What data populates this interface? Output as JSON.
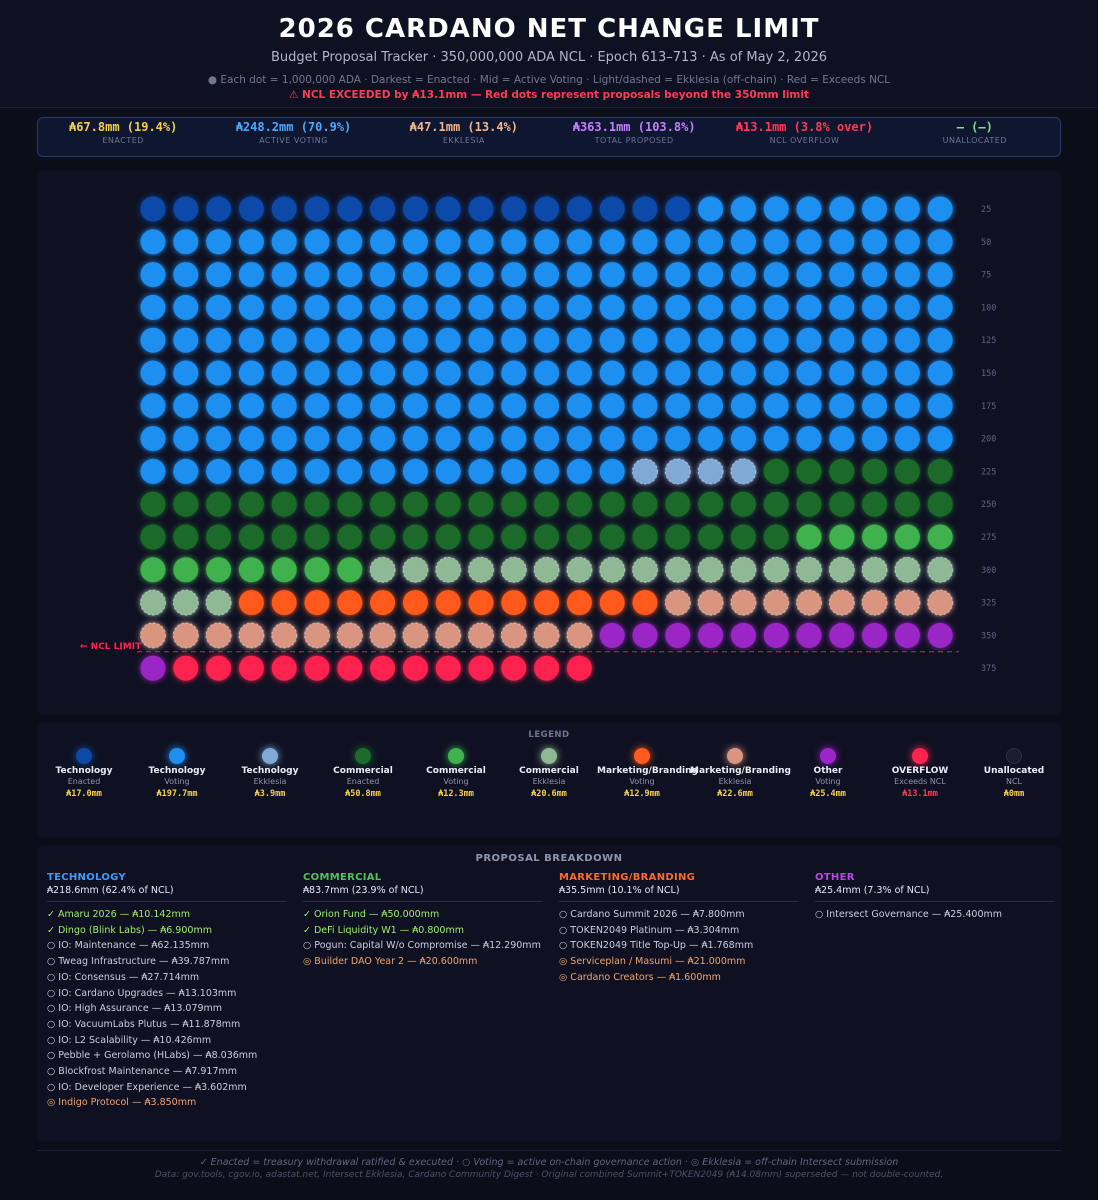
{
  "header": {
    "title": "2026 CARDANO NET CHANGE LIMIT",
    "subtitle": "Budget Proposal Tracker  ·  350,000,000 ADA NCL  ·  Epoch 613–713  ·  As of May 2, 2026",
    "note": "● Each dot = 1,000,000 ADA  ·  Darkest = Enacted  ·  Mid = Active Voting  ·  Light/dashed = Ekklesia (off-chain)  ·  Red = Exceeds NCL",
    "warning": "⚠ NCL EXCEEDED by ₳13.1mm — Red dots represent proposals beyond the 350mm limit"
  },
  "stats": [
    {
      "value": "₳67.8mm  (19.4%)",
      "label": "ENACTED",
      "color": "#f3d04a"
    },
    {
      "value": "₳248.2mm  (70.9%)",
      "label": "ACTIVE VOTING",
      "color": "#4aa8ff"
    },
    {
      "value": "₳47.1mm  (13.4%)",
      "label": "EKKLESIA",
      "color": "#f0b58a"
    },
    {
      "value": "₳363.1mm  (103.8%)",
      "label": "TOTAL PROPOSED",
      "color": "#c77dff"
    },
    {
      "value": "₳13.1mm  (3.8% over)",
      "label": "NCL OVERFLOW",
      "color": "#ff3b55"
    },
    {
      "value": "—  (—)",
      "label": "UNALLOCATED",
      "color": "#7ee08a"
    }
  ],
  "chart_data": {
    "type": "waffle",
    "unit": "1,000,000 ADA per dot",
    "dots_per_row": 25,
    "ncl_limit": 350,
    "ncl_label": "← NCL LIMIT",
    "row_labels": [
      "25",
      "50",
      "75",
      "100",
      "125",
      "150",
      "175",
      "200",
      "225",
      "250",
      "275",
      "300",
      "325",
      "350",
      "375"
    ],
    "segments": [
      {
        "name": "Technology Enacted",
        "dots": 17,
        "color": "#0d4aa8",
        "style": "solid"
      },
      {
        "name": "Technology Voting",
        "dots": 198,
        "color": "#1f8ff0",
        "style": "solid"
      },
      {
        "name": "Technology Ekklesia",
        "dots": 4,
        "color": "#7fa9d6",
        "style": "dashed"
      },
      {
        "name": "Commercial Enacted",
        "dots": 51,
        "color": "#1d6b2a",
        "style": "solid"
      },
      {
        "name": "Commercial Voting",
        "dots": 12,
        "color": "#3fb24e",
        "style": "solid"
      },
      {
        "name": "Commercial Ekklesia",
        "dots": 21,
        "color": "#8fb895",
        "style": "dashed"
      },
      {
        "name": "Marketing/Branding Voting",
        "dots": 13,
        "color": "#ff5a1f",
        "style": "solid"
      },
      {
        "name": "Marketing/Branding Ekklesia",
        "dots": 23,
        "color": "#d99580",
        "style": "dashed"
      },
      {
        "name": "Other Voting",
        "dots": 12,
        "color": "#9b25c6",
        "style": "solid"
      },
      {
        "name": "Overflow Exceeds NCL",
        "dots": 13,
        "color": "#ff2450",
        "style": "solid"
      }
    ]
  },
  "legend": {
    "title": "LEGEND",
    "items": [
      {
        "name": "Technology",
        "sub": "Enacted",
        "amount": "₳17.0mm",
        "color": "#0d4aa8",
        "amount_color": "#f3d04a"
      },
      {
        "name": "Technology",
        "sub": "Voting",
        "amount": "₳197.7mm",
        "color": "#1f8ff0",
        "amount_color": "#f3d04a"
      },
      {
        "name": "Technology",
        "sub": "Ekklesia",
        "amount": "₳3.9mm",
        "color": "#7fa9d6",
        "amount_color": "#f3d04a"
      },
      {
        "name": "Commercial",
        "sub": "Enacted",
        "amount": "₳50.8mm",
        "color": "#1d6b2a",
        "amount_color": "#f3d04a"
      },
      {
        "name": "Commercial",
        "sub": "Voting",
        "amount": "₳12.3mm",
        "color": "#3fb24e",
        "amount_color": "#f3d04a"
      },
      {
        "name": "Commercial",
        "sub": "Ekklesia",
        "amount": "₳20.6mm",
        "color": "#8fb895",
        "amount_color": "#f3d04a"
      },
      {
        "name": "Marketing/Branding",
        "sub": "Voting",
        "amount": "₳12.9mm",
        "color": "#ff5a1f",
        "amount_color": "#f3d04a"
      },
      {
        "name": "Marketing/Branding",
        "sub": "Ekklesia",
        "amount": "₳22.6mm",
        "color": "#d99580",
        "amount_color": "#f3d04a"
      },
      {
        "name": "Other",
        "sub": "Voting",
        "amount": "₳25.4mm",
        "color": "#9b25c6",
        "amount_color": "#f3d04a"
      },
      {
        "name": "OVERFLOW",
        "sub": "Exceeds NCL",
        "amount": "₳13.1mm",
        "color": "#ff2450",
        "amount_color": "#ff3b55"
      },
      {
        "name": "Unallocated",
        "sub": "NCL",
        "amount": "₳0mm",
        "color": "#1a1d2e",
        "amount_color": "#f3d04a"
      }
    ]
  },
  "breakdown": {
    "title": "PROPOSAL BREAKDOWN",
    "columns": [
      {
        "head": "TECHNOLOGY",
        "head_color": "#3d9bff",
        "total": "₳218.6mm  (62.4% of NCL)",
        "items": [
          {
            "text": "✓ Amaru 2026 — ₳10.142mm",
            "color": "#9cf06a"
          },
          {
            "text": "✓ Dingo (Blink Labs) — ₳6.900mm",
            "color": "#9cf06a"
          },
          {
            "text": "○ IO: Maintenance — ₳62.135mm",
            "color": "#c9cedb"
          },
          {
            "text": "○ Tweag Infrastructure — ₳39.787mm",
            "color": "#c9cedb"
          },
          {
            "text": "○ IO: Consensus — ₳27.714mm",
            "color": "#c9cedb"
          },
          {
            "text": "○ IO: Cardano Upgrades — ₳13.103mm",
            "color": "#c9cedb"
          },
          {
            "text": "○ IO: High Assurance — ₳13.079mm",
            "color": "#c9cedb"
          },
          {
            "text": "○ IO: VacuumLabs Plutus — ₳11.878mm",
            "color": "#c9cedb"
          },
          {
            "text": "○ IO: L2 Scalability — ₳10.426mm",
            "color": "#c9cedb"
          },
          {
            "text": "○ Pebble + Gerolamo (HLabs) — ₳8.036mm",
            "color": "#c9cedb"
          },
          {
            "text": "○ Blockfrost Maintenance — ₳7.917mm",
            "color": "#c9cedb"
          },
          {
            "text": "○ IO: Developer Experience — ₳3.602mm",
            "color": "#c9cedb"
          },
          {
            "text": "◎ Indigo Protocol — ₳3.850mm",
            "color": "#f0a36b"
          }
        ]
      },
      {
        "head": "COMMERCIAL",
        "head_color": "#4ec35b",
        "total": "₳83.7mm  (23.9% of NCL)",
        "items": [
          {
            "text": "✓ Orion Fund — ₳50.000mm",
            "color": "#9cf06a"
          },
          {
            "text": "✓ DeFi Liquidity W1 — ₳0.800mm",
            "color": "#9cf06a"
          },
          {
            "text": "○ Pogun: Capital W/o Compromise — ₳12.290mm",
            "color": "#c9cedb"
          },
          {
            "text": "◎ Builder DAO Year 2 — ₳20.600mm",
            "color": "#f0a36b"
          }
        ]
      },
      {
        "head": "MARKETING/BRANDING",
        "head_color": "#ff6a2b",
        "total": "₳35.5mm  (10.1% of NCL)",
        "items": [
          {
            "text": "○ Cardano Summit 2026 — ₳7.800mm",
            "color": "#c9cedb"
          },
          {
            "text": "○ TOKEN2049 Platinum — ₳3.304mm",
            "color": "#c9cedb"
          },
          {
            "text": "○ TOKEN2049 Title Top-Up — ₳1.768mm",
            "color": "#c9cedb"
          },
          {
            "text": "◎ Serviceplan / Masumi — ₳21.000mm",
            "color": "#f0a36b"
          },
          {
            "text": "◎ Cardano Creators — ₳1.600mm",
            "color": "#f0a36b"
          }
        ]
      },
      {
        "head": "OTHER",
        "head_color": "#b44ae0",
        "total": "₳25.4mm  (7.3% of NCL)",
        "items": [
          {
            "text": "○ Intersect Governance — ₳25.400mm",
            "color": "#c9cedb"
          }
        ]
      }
    ]
  },
  "footer": {
    "line1": "✓ Enacted = treasury withdrawal ratified & executed  ·  ○ Voting = active on-chain governance action  ·  ◎ Ekklesia = off-chain Intersect submission",
    "line2": "Data: gov.tools, cgov.io, adastat.net, Intersect Ekklesia, Cardano Community Digest  ·  Original combined Summit+TOKEN2049 (₳14.08mm) superseded — not double-counted."
  }
}
